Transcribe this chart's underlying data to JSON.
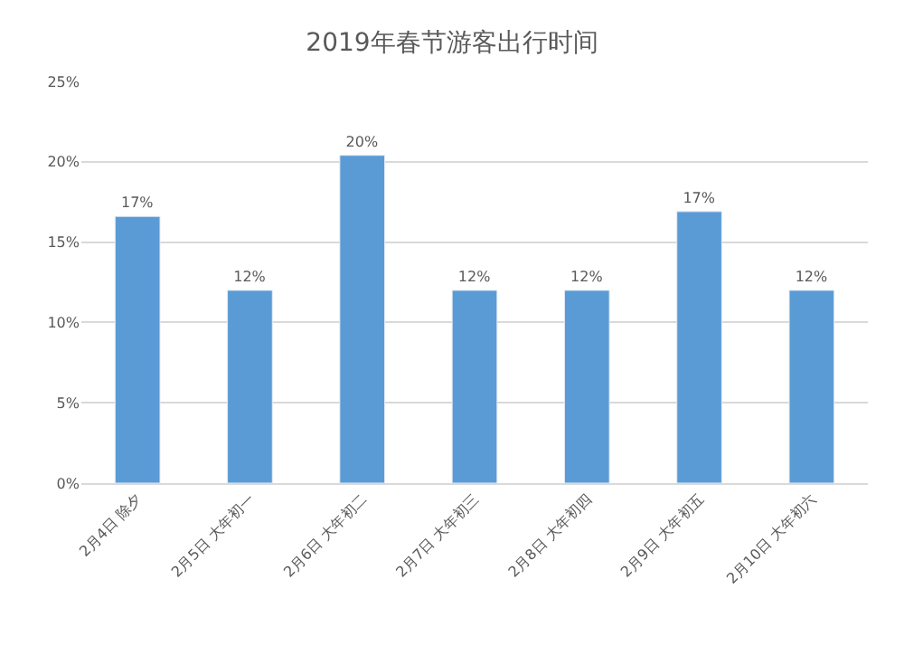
{
  "chart_data": {
    "type": "bar",
    "title": "2019年春节游客出行时间",
    "categories": [
      "2月4日 除夕",
      "2月5日 大年初一",
      "2月6日 大年初二",
      "2月7日 大年初三",
      "2月8日 大年初四",
      "2月9日 大年初五",
      "2月10日 大年初六"
    ],
    "values": [
      16.6,
      12,
      20.4,
      12,
      12,
      16.9,
      12
    ],
    "value_labels": [
      "17%",
      "12%",
      "20%",
      "12%",
      "12%",
      "17%",
      "12%"
    ],
    "color": "#5b9bd5",
    "ylim": [
      0,
      25
    ],
    "yticks": [
      {
        "value": 0,
        "label": "0%"
      },
      {
        "value": 5,
        "label": "5%"
      },
      {
        "value": 10,
        "label": "10%"
      },
      {
        "value": 15,
        "label": "15%"
      },
      {
        "value": 20,
        "label": "20%"
      },
      {
        "value": 25,
        "label": "25%"
      }
    ],
    "grid": "y",
    "legend": false
  }
}
